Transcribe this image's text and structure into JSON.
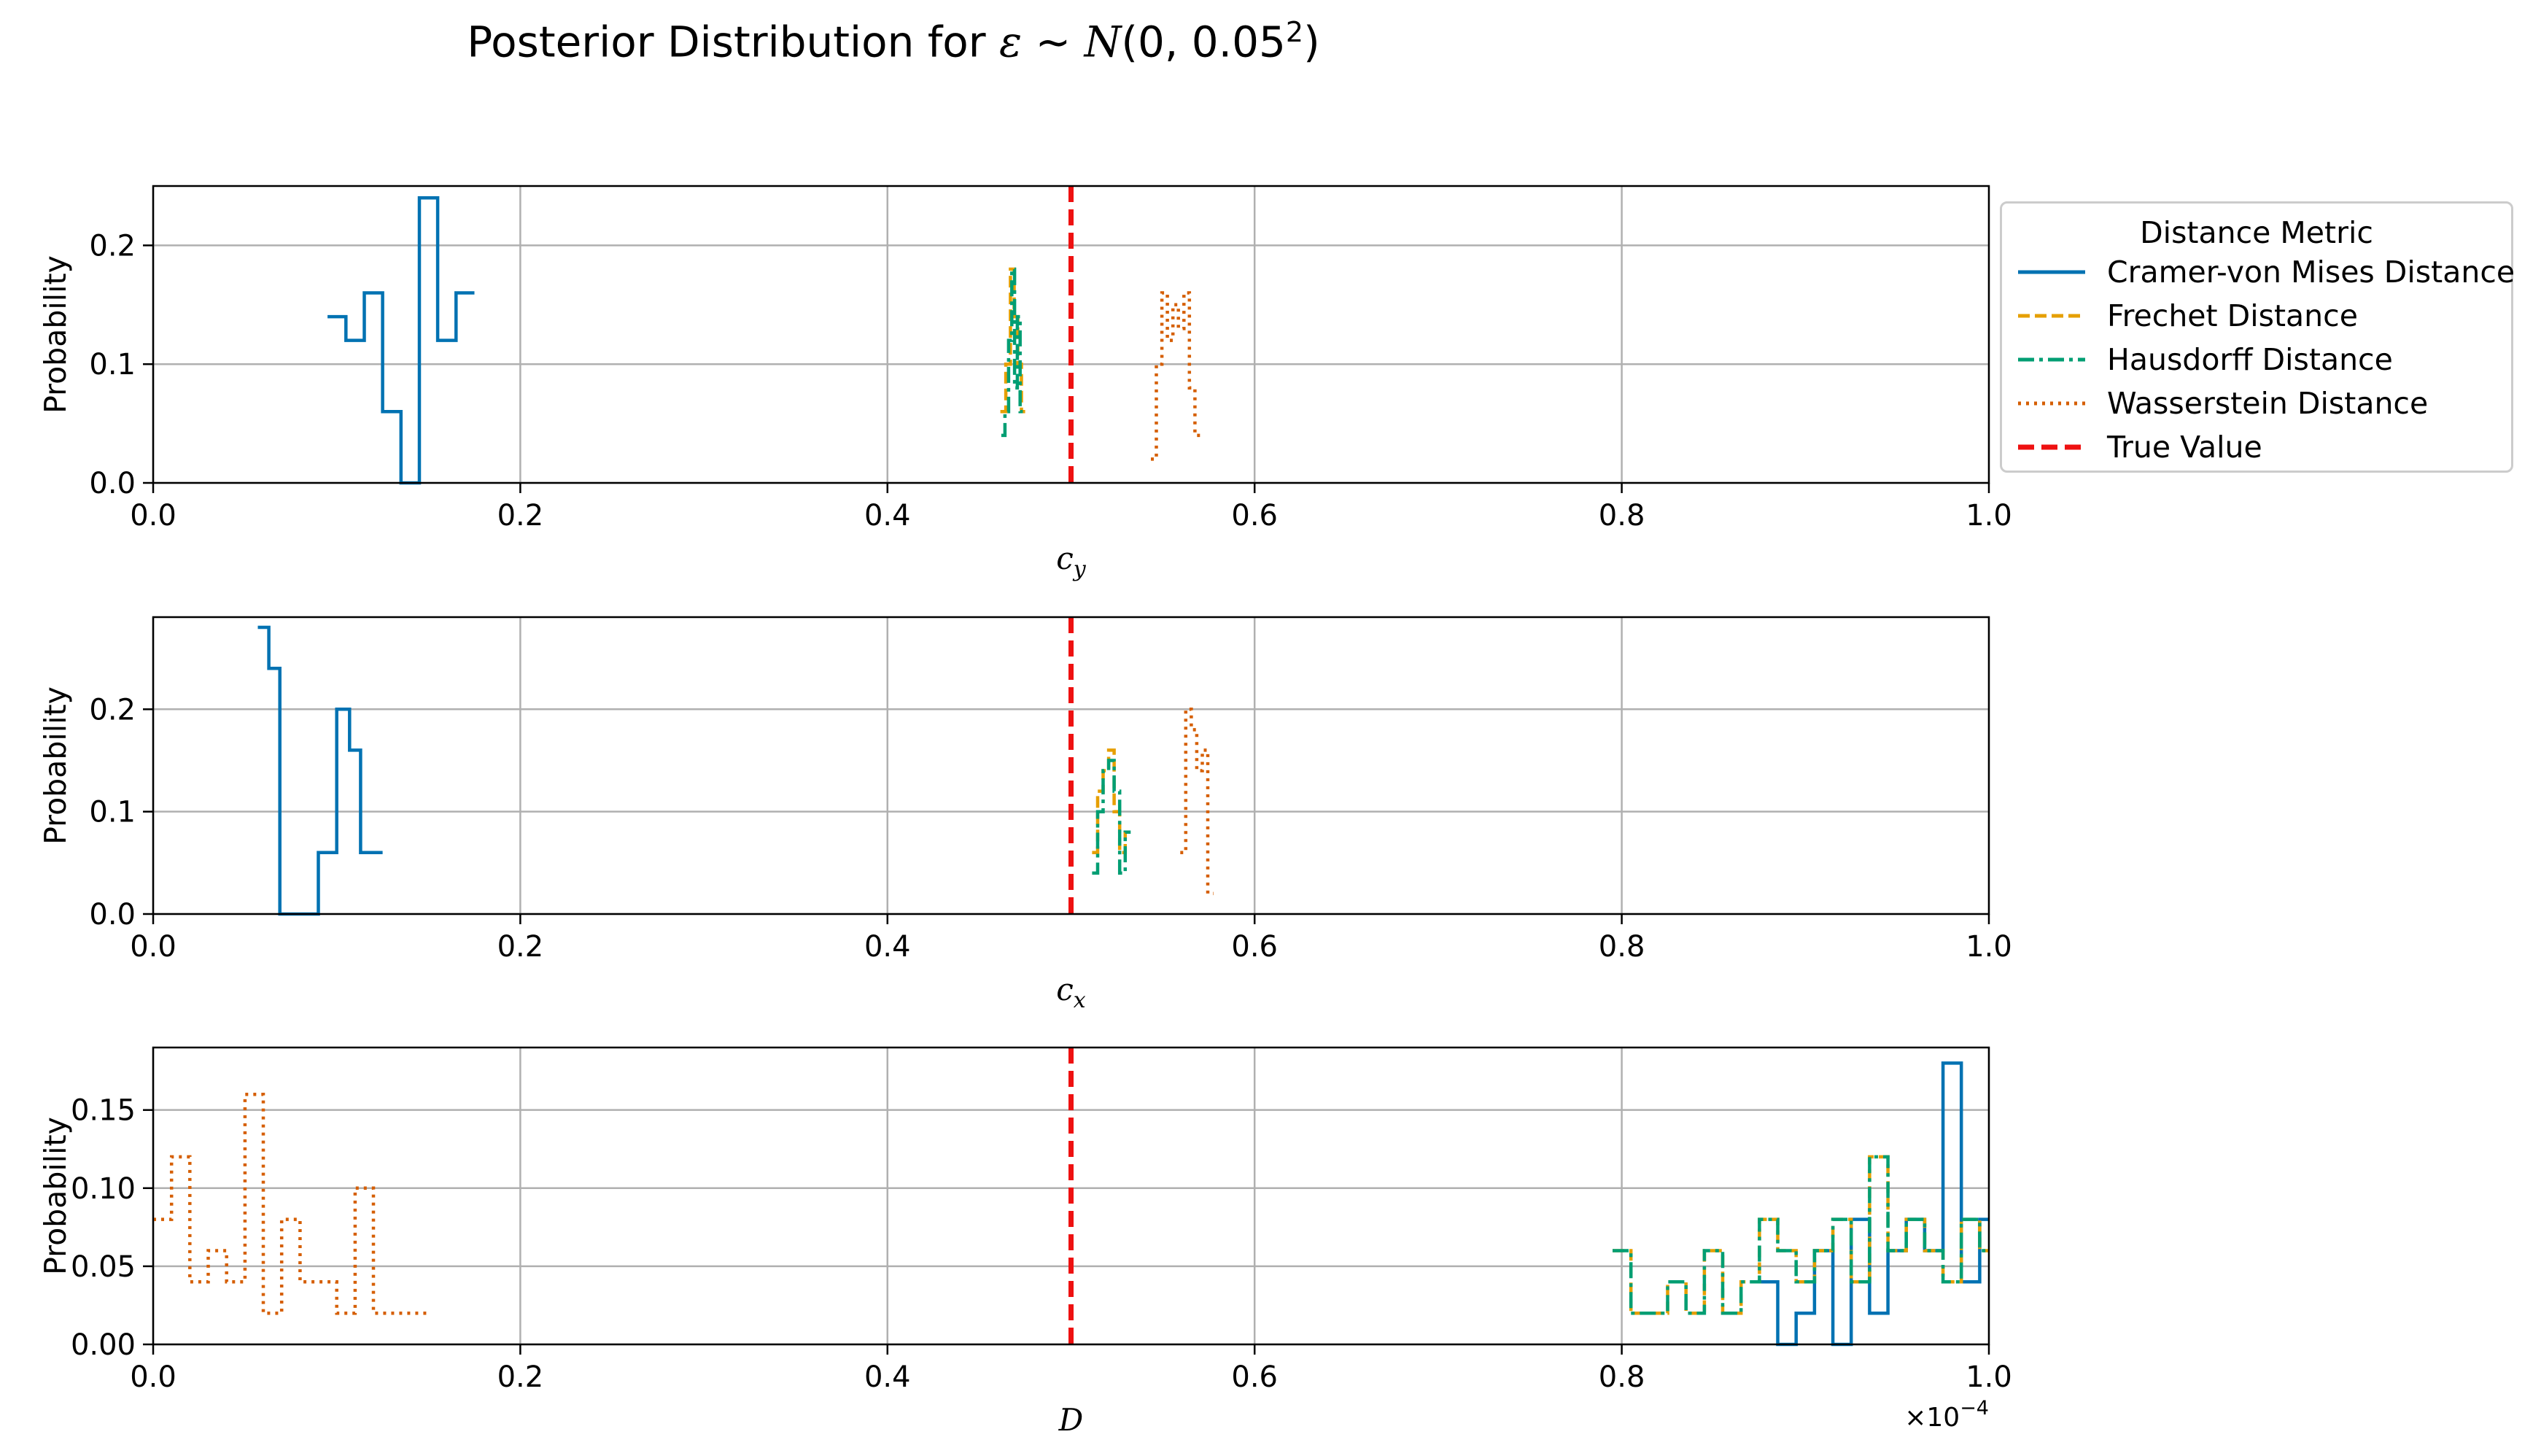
{
  "title": {
    "prefix": "Posterior Distribution for ",
    "eps": "ε",
    "sim": " ∼ ",
    "n": "N",
    "args": "(0, 0.05",
    "exp": "2",
    "close": ")"
  },
  "legend": {
    "title": "Distance Metric",
    "entries": [
      {
        "label": "Cramer-von Mises Distance",
        "color": "#0072B2",
        "style": "solid"
      },
      {
        "label": "Frechet Distance",
        "color": "#E69F00",
        "style": "dashed"
      },
      {
        "label": "Hausdorff Distance",
        "color": "#009E73",
        "style": "dashdot"
      },
      {
        "label": "Wasserstein Distance",
        "color": "#D55E00",
        "style": "dotted"
      },
      {
        "label": "True Value",
        "color": "#EE1111",
        "style": "dashed-thick"
      }
    ]
  },
  "chart_data": [
    {
      "type": "step",
      "xlabel": "c_y",
      "ylabel": "Probability",
      "xlim": [
        0.0,
        1.0
      ],
      "ylim": [
        0.0,
        0.25
      ],
      "xticks": [
        "0.0",
        "0.2",
        "0.4",
        "0.6",
        "0.8",
        "1.0"
      ],
      "yticks": [
        {
          "v": 0.0,
          "label": "0.0"
        },
        {
          "v": 0.1,
          "label": "0.1"
        },
        {
          "v": 0.2,
          "label": "0.2"
        }
      ],
      "grid": true,
      "true_value": 0.5,
      "series": [
        {
          "name": "Cramer-von Mises Distance",
          "x": [
            0.1,
            0.11,
            0.12,
            0.13,
            0.14,
            0.15,
            0.16,
            0.17
          ],
          "y": [
            0.14,
            0.12,
            0.16,
            0.06,
            0.0,
            0.24,
            0.12,
            0.16
          ]
        },
        {
          "name": "Frechet Distance",
          "x": [
            0.463,
            0.466,
            0.468,
            0.47,
            0.472,
            0.474
          ],
          "y": [
            0.06,
            0.1,
            0.18,
            0.14,
            0.1,
            0.06
          ]
        },
        {
          "name": "Hausdorff Distance",
          "x": [
            0.463,
            0.465,
            0.467,
            0.4685,
            0.47,
            0.4715,
            0.473
          ],
          "y": [
            0.04,
            0.06,
            0.12,
            0.18,
            0.08,
            0.14,
            0.06
          ]
        },
        {
          "name": "Wasserstein Distance",
          "x": [
            0.545,
            0.548,
            0.551,
            0.554,
            0.557,
            0.56,
            0.563,
            0.566,
            0.569
          ],
          "y": [
            0.02,
            0.1,
            0.16,
            0.12,
            0.15,
            0.13,
            0.16,
            0.08,
            0.04
          ]
        }
      ]
    },
    {
      "type": "step",
      "xlabel": "c_x",
      "ylabel": "Probability",
      "xlim": [
        0.0,
        1.0
      ],
      "ylim": [
        0.0,
        0.29
      ],
      "xticks": [
        "0.0",
        "0.2",
        "0.4",
        "0.6",
        "0.8",
        "1.0"
      ],
      "yticks": [
        {
          "v": 0.0,
          "label": "0.0"
        },
        {
          "v": 0.1,
          "label": "0.1"
        },
        {
          "v": 0.2,
          "label": "0.2"
        }
      ],
      "grid": true,
      "true_value": 0.5,
      "series": [
        {
          "name": "Cramer-von Mises Distance",
          "x": [
            0.06,
            0.066,
            0.072,
            0.084,
            0.096,
            0.104,
            0.11,
            0.116,
            0.122
          ],
          "y": [
            0.28,
            0.24,
            0.0,
            0.0,
            0.06,
            0.2,
            0.16,
            0.06,
            0.06
          ]
        },
        {
          "name": "Frechet Distance",
          "x": [
            0.513,
            0.516,
            0.519,
            0.522,
            0.525,
            0.528,
            0.531
          ],
          "y": [
            0.06,
            0.12,
            0.14,
            0.16,
            0.1,
            0.06,
            0.08
          ]
        },
        {
          "name": "Hausdorff Distance",
          "x": [
            0.513,
            0.516,
            0.519,
            0.522,
            0.525,
            0.528,
            0.531
          ],
          "y": [
            0.04,
            0.1,
            0.14,
            0.15,
            0.12,
            0.04,
            0.08
          ]
        },
        {
          "name": "Wasserstein Distance",
          "x": [
            0.561,
            0.564,
            0.567,
            0.57,
            0.573,
            0.576
          ],
          "y": [
            0.06,
            0.2,
            0.18,
            0.14,
            0.16,
            0.02
          ]
        }
      ]
    },
    {
      "type": "step",
      "xlabel": "D",
      "ylabel": "Probability",
      "xlim": [
        0.0,
        1.0
      ],
      "ylim": [
        0.0,
        0.19
      ],
      "offset_label": "×10−4",
      "xticks": [
        "0.0",
        "0.2",
        "0.4",
        "0.6",
        "0.8",
        "1.0"
      ],
      "yticks": [
        {
          "v": 0.0,
          "label": "0.00"
        },
        {
          "v": 0.05,
          "label": "0.05"
        },
        {
          "v": 0.1,
          "label": "0.10"
        },
        {
          "v": 0.15,
          "label": "0.15"
        }
      ],
      "grid": true,
      "true_value": 0.5,
      "series": [
        {
          "name": "Cramer-von Mises Distance",
          "x": [
            0.88,
            0.89,
            0.9,
            0.91,
            0.92,
            0.93,
            0.94,
            0.95,
            0.96,
            0.97,
            0.98,
            0.99,
            1.0
          ],
          "y": [
            0.04,
            0.0,
            0.02,
            0.06,
            0.0,
            0.08,
            0.02,
            0.06,
            0.08,
            0.06,
            0.18,
            0.04,
            0.08
          ]
        },
        {
          "name": "Frechet Distance",
          "x": [
            0.8,
            0.81,
            0.82,
            0.83,
            0.84,
            0.85,
            0.86,
            0.87,
            0.88,
            0.89,
            0.9,
            0.91,
            0.92,
            0.93,
            0.94,
            0.95,
            0.96,
            0.97,
            0.98,
            0.99,
            1.0
          ],
          "y": [
            0.06,
            0.02,
            0.02,
            0.04,
            0.02,
            0.06,
            0.02,
            0.04,
            0.08,
            0.06,
            0.04,
            0.06,
            0.08,
            0.04,
            0.12,
            0.06,
            0.08,
            0.06,
            0.04,
            0.08,
            0.06
          ]
        },
        {
          "name": "Hausdorff Distance",
          "x": [
            0.8,
            0.81,
            0.82,
            0.83,
            0.84,
            0.85,
            0.86,
            0.87,
            0.88,
            0.89,
            0.9,
            0.91,
            0.92,
            0.93,
            0.94,
            0.95,
            0.96,
            0.97,
            0.98,
            0.99,
            1.0
          ],
          "y": [
            0.06,
            0.02,
            0.02,
            0.04,
            0.02,
            0.06,
            0.02,
            0.04,
            0.08,
            0.06,
            0.04,
            0.06,
            0.08,
            0.04,
            0.12,
            0.06,
            0.08,
            0.06,
            0.04,
            0.08,
            0.06
          ]
        },
        {
          "name": "Wasserstein Distance",
          "x": [
            0.005,
            0.015,
            0.025,
            0.035,
            0.045,
            0.055,
            0.065,
            0.075,
            0.085,
            0.095,
            0.105,
            0.115,
            0.125,
            0.135,
            0.145
          ],
          "y": [
            0.08,
            0.12,
            0.04,
            0.06,
            0.04,
            0.16,
            0.02,
            0.08,
            0.04,
            0.04,
            0.02,
            0.1,
            0.02,
            0.02,
            0.02
          ]
        }
      ]
    }
  ]
}
